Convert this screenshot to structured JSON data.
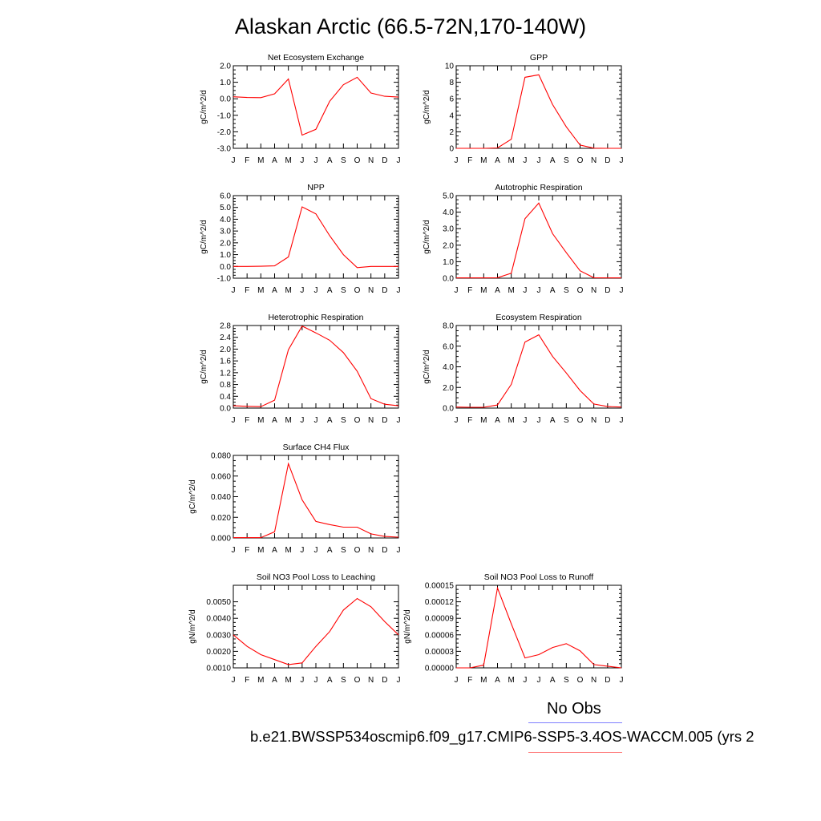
{
  "title": "Alaskan Arctic (66.5-72N,170-140W)",
  "legend": {
    "obs_label": "No Obs",
    "case_label": "b.e21.BWSSP534oscmip6.f09_g17.CMIP6-SSP5-3.4OS-WACCM.005 (yrs 2",
    "colors": {
      "obs": "#7f7fff",
      "model": "#ff0000"
    }
  },
  "chart_data": [
    {
      "type": "line",
      "title": "Net Ecosystem Exchange",
      "ylabel": "gC/m^2/d",
      "categories": [
        "J",
        "F",
        "M",
        "A",
        "M",
        "J",
        "J",
        "A",
        "S",
        "O",
        "N",
        "D",
        "J"
      ],
      "values": [
        0.12,
        0.08,
        0.07,
        0.3,
        1.2,
        -2.2,
        -1.85,
        -0.15,
        0.85,
        1.3,
        0.35,
        0.15,
        0.1
      ],
      "ylim": [
        -3.0,
        2.0
      ],
      "yticks": [
        -3.0,
        -2.0,
        -1.0,
        0.0,
        1.0,
        2.0
      ],
      "yticklabels": [
        "-3.0",
        "-2.0",
        "-1.0",
        "0.0",
        "1.0",
        "2.0"
      ]
    },
    {
      "type": "line",
      "title": "GPP",
      "ylabel": "gC/m^2/d",
      "categories": [
        "J",
        "F",
        "M",
        "A",
        "M",
        "J",
        "J",
        "A",
        "S",
        "O",
        "N",
        "D",
        "J"
      ],
      "values": [
        0,
        0,
        0,
        0.05,
        1.1,
        8.6,
        8.9,
        5.3,
        2.6,
        0.4,
        0.02,
        0,
        0
      ],
      "ylim": [
        0,
        10
      ],
      "yticks": [
        0,
        2,
        4,
        6,
        8,
        10
      ],
      "yticklabels": [
        "0",
        "2",
        "4",
        "6",
        "8",
        "10"
      ]
    },
    {
      "type": "line",
      "title": "NPP",
      "ylabel": "gC/m^2/d",
      "categories": [
        "J",
        "F",
        "M",
        "A",
        "M",
        "J",
        "J",
        "A",
        "S",
        "O",
        "N",
        "D",
        "J"
      ],
      "values": [
        0,
        0,
        0.01,
        0.05,
        0.8,
        5.05,
        4.45,
        2.6,
        1.0,
        -0.1,
        0,
        0,
        0
      ],
      "ylim": [
        -1.0,
        6.0
      ],
      "yticks": [
        -1.0,
        0.0,
        1.0,
        2.0,
        3.0,
        4.0,
        5.0,
        6.0
      ],
      "yticklabels": [
        "-1.0",
        "0.0",
        "1.0",
        "2.0",
        "3.0",
        "4.0",
        "5.0",
        "6.0"
      ]
    },
    {
      "type": "line",
      "title": "Autotrophic Respiration",
      "ylabel": "gC/m^2/d",
      "categories": [
        "J",
        "F",
        "M",
        "A",
        "M",
        "J",
        "J",
        "A",
        "S",
        "O",
        "N",
        "D",
        "J"
      ],
      "values": [
        0.02,
        0.02,
        0.02,
        0.03,
        0.3,
        3.6,
        4.55,
        2.7,
        1.55,
        0.45,
        0.03,
        0.02,
        0.02
      ],
      "ylim": [
        0.0,
        5.0
      ],
      "yticks": [
        0.0,
        1.0,
        2.0,
        3.0,
        4.0,
        5.0
      ],
      "yticklabels": [
        "0.0",
        "1.0",
        "2.0",
        "3.0",
        "4.0",
        "5.0"
      ]
    },
    {
      "type": "line",
      "title": "Heterotrophic Respiration",
      "ylabel": "gC/m^2/d",
      "categories": [
        "J",
        "F",
        "M",
        "A",
        "M",
        "J",
        "J",
        "A",
        "S",
        "O",
        "N",
        "D",
        "J"
      ],
      "values": [
        0.08,
        0.06,
        0.05,
        0.27,
        1.98,
        2.78,
        2.55,
        2.3,
        1.88,
        1.25,
        0.32,
        0.13,
        0.08
      ],
      "ylim": [
        0.0,
        2.8
      ],
      "yticks": [
        0.0,
        0.4,
        0.8,
        1.2,
        1.6,
        2.0,
        2.4,
        2.8
      ],
      "yticklabels": [
        "0.0",
        "0.4",
        "0.8",
        "1.2",
        "1.6",
        "2.0",
        "2.4",
        "2.8"
      ]
    },
    {
      "type": "line",
      "title": "Ecosystem Respiration",
      "ylabel": "gC/m^2/d",
      "categories": [
        "J",
        "F",
        "M",
        "A",
        "M",
        "J",
        "J",
        "A",
        "S",
        "O",
        "N",
        "D",
        "J"
      ],
      "values": [
        0.1,
        0.08,
        0.08,
        0.3,
        2.3,
        6.4,
        7.1,
        5.0,
        3.4,
        1.7,
        0.4,
        0.15,
        0.1
      ],
      "ylim": [
        0.0,
        8.0
      ],
      "yticks": [
        0.0,
        2.0,
        4.0,
        6.0,
        8.0
      ],
      "yticklabels": [
        "0.0",
        "2.0",
        "4.0",
        "6.0",
        "8.0"
      ]
    },
    {
      "type": "line",
      "title": "Surface CH4 Flux",
      "ylabel": "gC/m^2/d",
      "categories": [
        "J",
        "F",
        "M",
        "A",
        "M",
        "J",
        "J",
        "A",
        "S",
        "O",
        "N",
        "D",
        "J"
      ],
      "values": [
        0.0003,
        0.0003,
        0.0003,
        0.006,
        0.072,
        0.037,
        0.016,
        0.013,
        0.0105,
        0.0105,
        0.004,
        0.0015,
        0.0008
      ],
      "ylim": [
        0.0,
        0.08
      ],
      "yticks": [
        0.0,
        0.02,
        0.04,
        0.06,
        0.08
      ],
      "yticklabels": [
        "0.000",
        "0.020",
        "0.040",
        "0.060",
        "0.080"
      ]
    },
    {
      "type": "line",
      "title": "Soil NO3 Pool Loss to Leaching",
      "ylabel": "gN/m^2/d",
      "categories": [
        "J",
        "F",
        "M",
        "A",
        "M",
        "J",
        "J",
        "A",
        "S",
        "O",
        "N",
        "D",
        "J"
      ],
      "values": [
        0.003,
        0.0023,
        0.0018,
        0.0015,
        0.0012,
        0.0013,
        0.0023,
        0.0032,
        0.0045,
        0.0052,
        0.0047,
        0.0038,
        0.003
      ],
      "ylim": [
        0.001,
        0.006
      ],
      "yticks": [
        0.001,
        0.002,
        0.003,
        0.004,
        0.005
      ],
      "yticklabels": [
        "0.0010",
        "0.0020",
        "0.0030",
        "0.0040",
        "0.0050"
      ]
    },
    {
      "type": "line",
      "title": "Soil NO3 Pool Loss to Runoff",
      "ylabel": "gN/m^2/d",
      "categories": [
        "J",
        "F",
        "M",
        "A",
        "M",
        "J",
        "J",
        "A",
        "S",
        "O",
        "N",
        "D",
        "J"
      ],
      "values": [
        0.0,
        0.0,
        5e-06,
        0.000145,
        8e-05,
        1.8e-05,
        2.4e-05,
        3.7e-05,
        4.4e-05,
        3.1e-05,
        6e-06,
        3e-06,
        0.0
      ],
      "ylim": [
        0.0,
        0.00015
      ],
      "yticks": [
        0.0,
        3e-05,
        6e-05,
        9e-05,
        0.00012,
        0.00015
      ],
      "yticklabels": [
        "0.00000",
        "0.00003",
        "0.00006",
        "0.00009",
        "0.00012",
        "0.00015"
      ]
    }
  ]
}
